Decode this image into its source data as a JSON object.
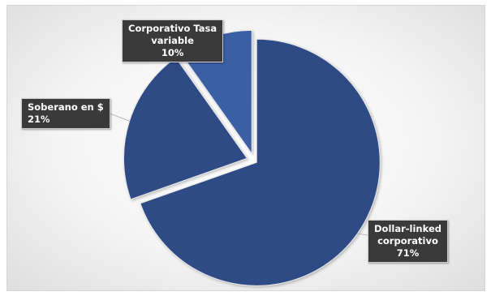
{
  "chart_data": {
    "type": "pie",
    "title": "",
    "slices": [
      {
        "label": [
          "Dollar-linked",
          "corporativo"
        ],
        "percent_label": "71%",
        "value": 71,
        "color": "#2f4b85"
      },
      {
        "label": [
          "Soberano en $"
        ],
        "percent_label": "21%",
        "value": 21,
        "color": "#2f4b85"
      },
      {
        "label": [
          "Corporativo Tasa",
          "variable"
        ],
        "percent_label": "10%",
        "value": 10,
        "color": "#3a5ea3"
      }
    ],
    "exploded": true,
    "legend": "none",
    "data_labels": "callout"
  }
}
